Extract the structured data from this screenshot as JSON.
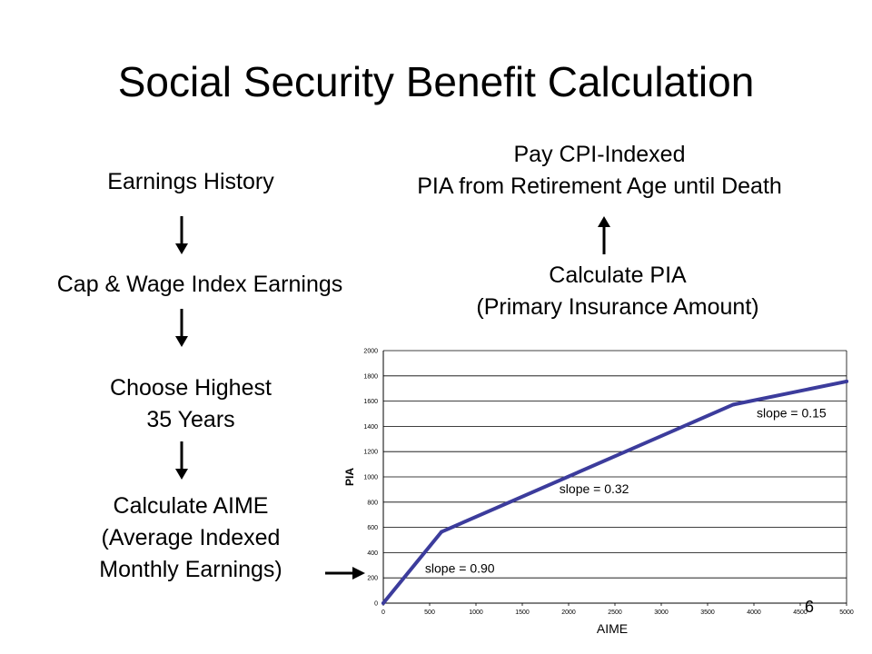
{
  "slide": {
    "title": "Social Security Benefit Calculation",
    "page_number": "6"
  },
  "flow": {
    "left": [
      {
        "lines": [
          "Earnings History"
        ]
      },
      {
        "lines": [
          "Cap & Wage Index Earnings"
        ]
      },
      {
        "lines": [
          "Choose Highest",
          "35 Years"
        ]
      },
      {
        "lines": [
          "Calculate AIME",
          "(Average Indexed",
          "Monthly Earnings)"
        ]
      }
    ],
    "right": [
      {
        "lines": [
          "Calculate PIA",
          "(Primary Insurance Amount)"
        ]
      },
      {
        "lines": [
          "Pay CPI-Indexed",
          "PIA from Retirement Age until Death"
        ]
      }
    ]
  },
  "chart_data": {
    "type": "line",
    "xlabel": "AIME",
    "ylabel": "PIA",
    "xlim": [
      0,
      5000
    ],
    "ylim": [
      0,
      2000
    ],
    "xticks": [
      0,
      500,
      1000,
      1500,
      2000,
      2500,
      3000,
      3500,
      4000,
      4500,
      5000
    ],
    "yticks": [
      0,
      200,
      400,
      600,
      800,
      1000,
      1200,
      1400,
      1600,
      1800,
      2000
    ],
    "grid": true,
    "series": [
      {
        "color": "#3c3c9c",
        "x": [
          0,
          627,
          3779,
          5000
        ],
        "y": [
          0,
          564,
          1573,
          1756
        ]
      }
    ],
    "annotations": [
      {
        "text": "slope = 0.90",
        "x": 450,
        "y": 240
      },
      {
        "text": "slope = 0.32",
        "x": 1900,
        "y": 870
      },
      {
        "text": "slope = 0.15",
        "x": 4030,
        "y": 1470
      }
    ]
  }
}
